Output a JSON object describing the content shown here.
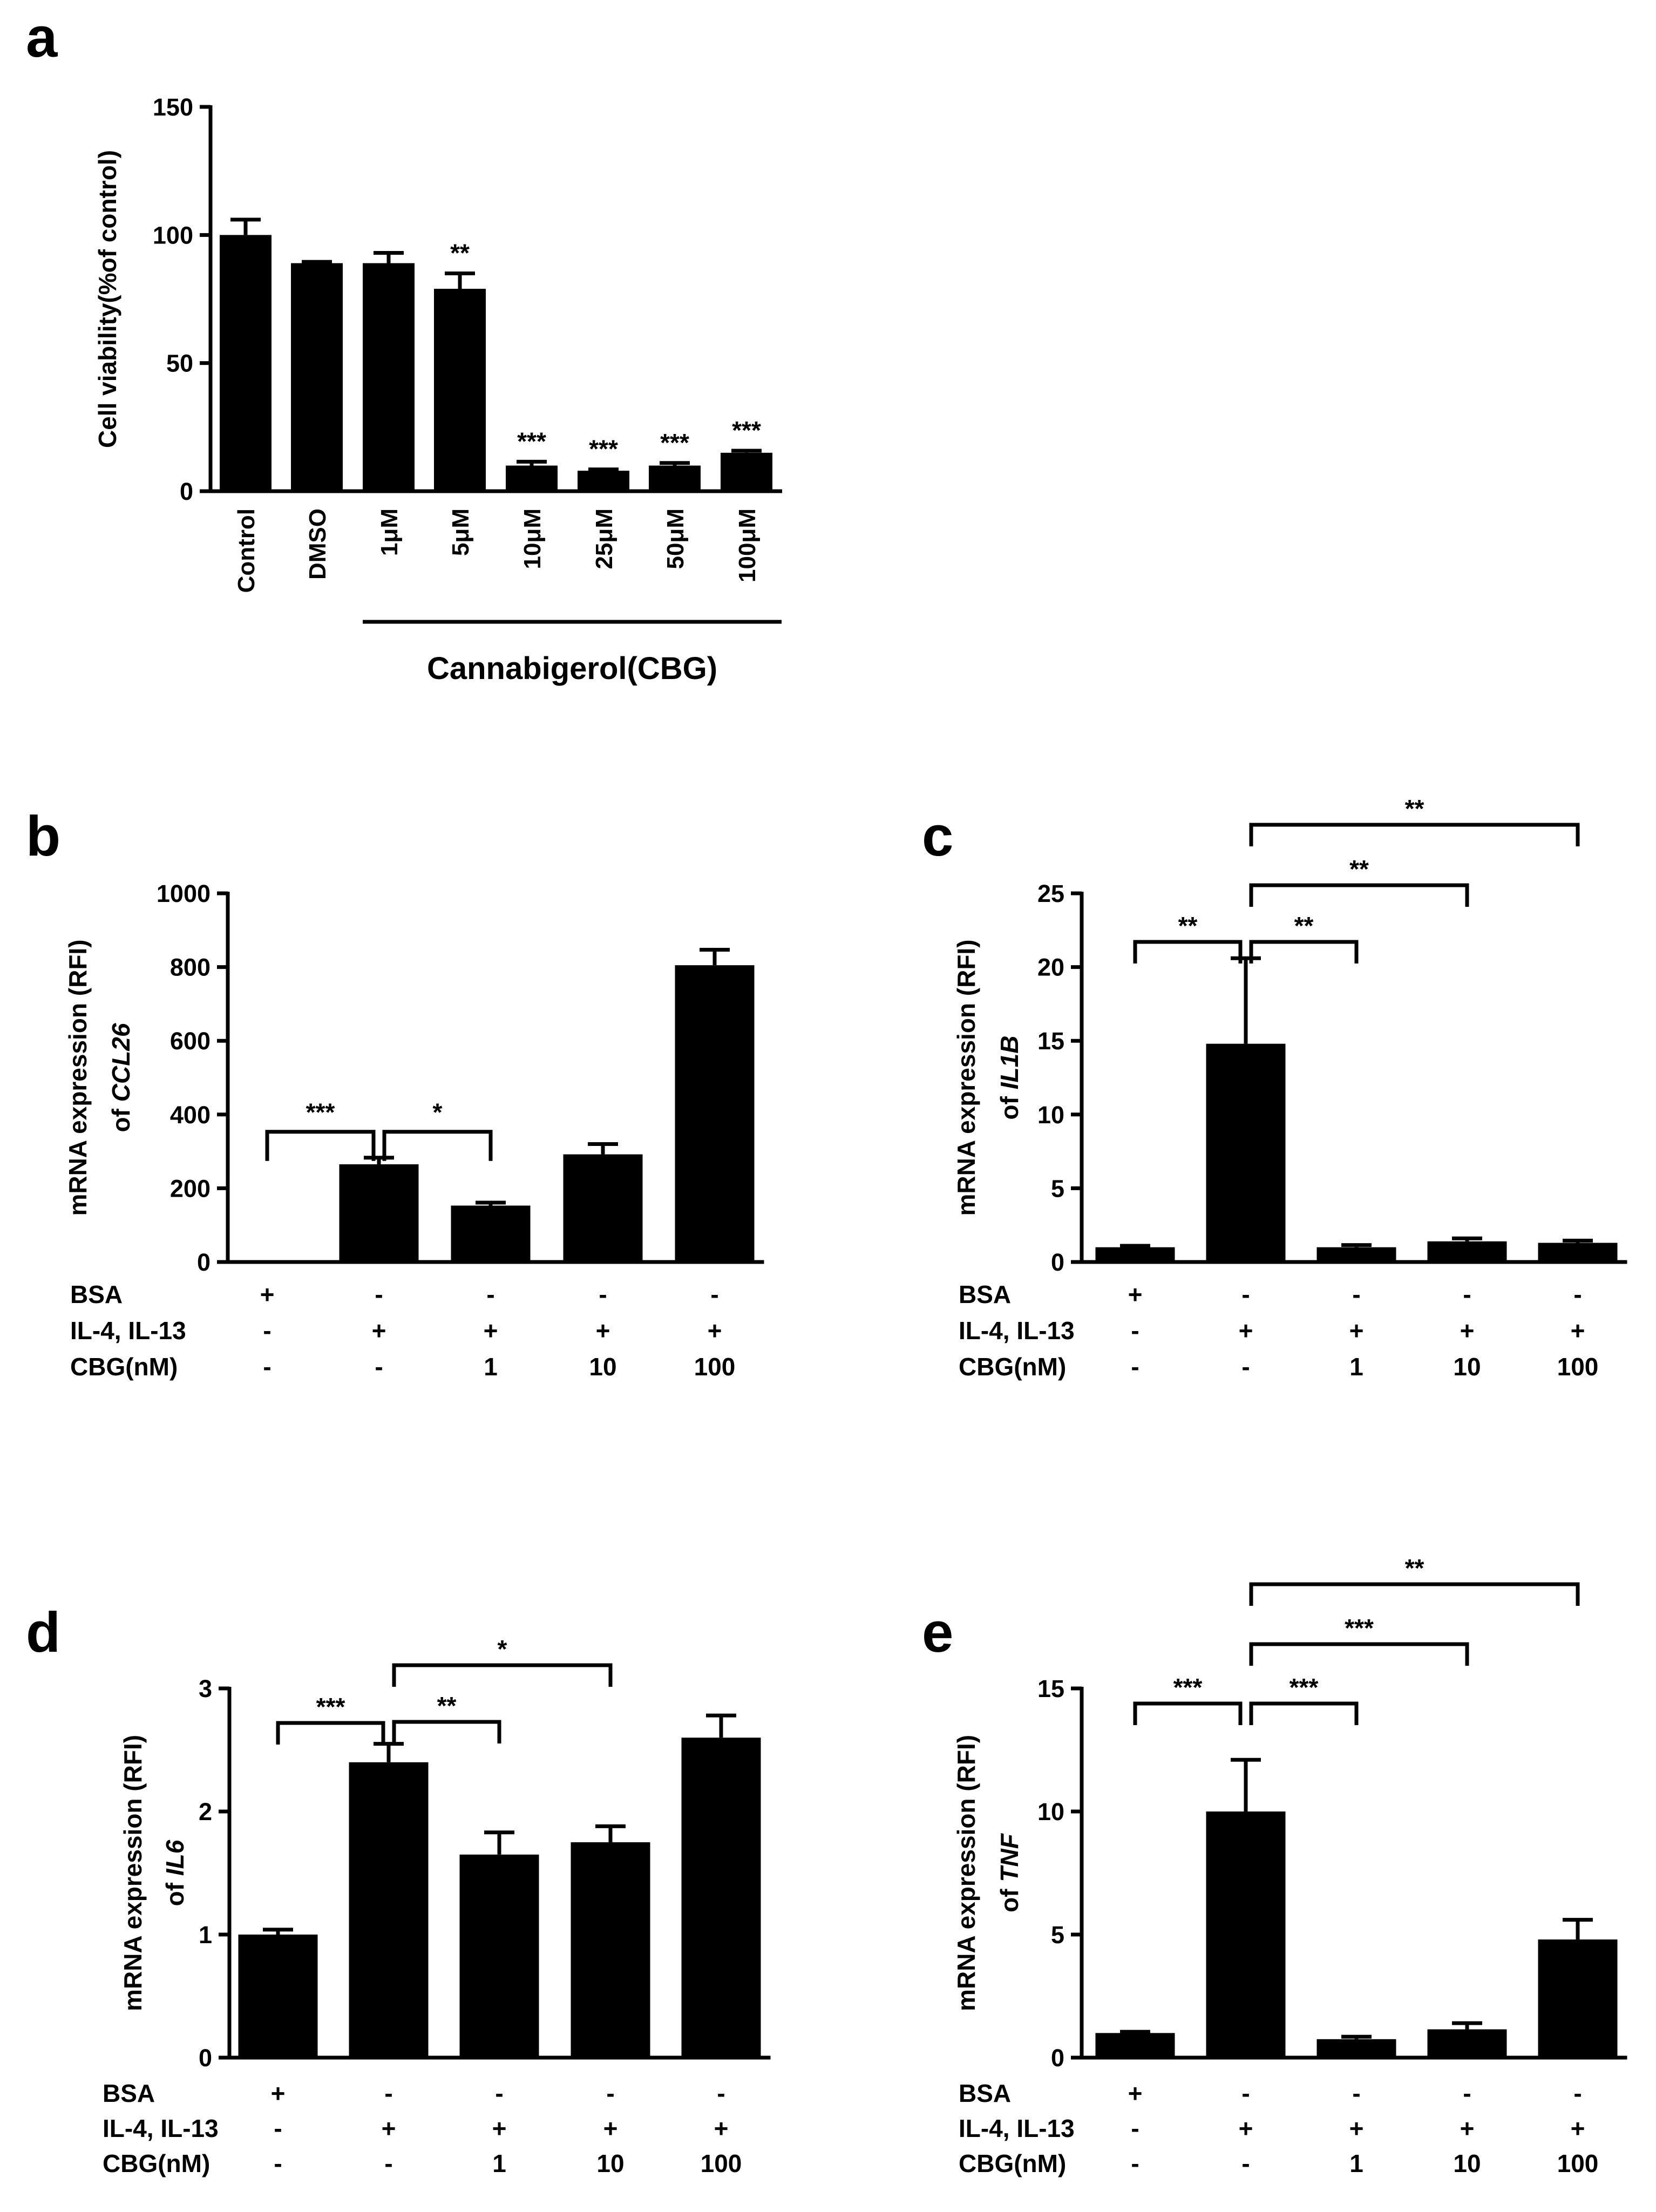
{
  "chart_data": [
    {
      "panel": "a",
      "type": "bar",
      "ylabel": "Cell viability(%of control)",
      "ylim": [
        0,
        150
      ],
      "yticks": [
        0,
        50,
        100,
        150
      ],
      "categories": [
        "Control",
        "DMSO",
        "1μM",
        "5μM",
        "10μM",
        "25μM",
        "50μM",
        "100μM"
      ],
      "values": [
        100,
        89,
        89,
        79,
        10,
        8,
        10,
        15
      ],
      "errors": [
        6,
        0.5,
        4,
        6,
        1.5,
        0.5,
        1,
        0.8
      ],
      "significance": [
        "",
        "",
        "",
        "**",
        "***",
        "***",
        "***",
        "***"
      ],
      "group_label": "Cannabigerol(CBG)"
    },
    {
      "panel": "b",
      "type": "bar",
      "ylabel_line1": "mRNA expression  (RFI)",
      "ylabel_line2_prefix": "of ",
      "ylabel_gene": "CCL26",
      "ylim": [
        0,
        1000
      ],
      "yticks": [
        0,
        200,
        400,
        600,
        800,
        1000
      ],
      "values": [
        1,
        265,
        153,
        292,
        805
      ],
      "errors": [
        0.5,
        18,
        8,
        28,
        42
      ],
      "conditions": {
        "labels": [
          "BSA",
          "IL-4, IL-13",
          "CBG(nM)"
        ],
        "rows": [
          [
            "+",
            "-",
            "-",
            "-",
            "-"
          ],
          [
            "-",
            "+",
            "+",
            "+",
            "+"
          ],
          [
            "-",
            "-",
            "1",
            "10",
            "100"
          ]
        ]
      },
      "comparisons": [
        {
          "from": 0,
          "to": 1,
          "label": "***"
        },
        {
          "from": 1,
          "to": 2,
          "label": "*"
        }
      ]
    },
    {
      "panel": "c",
      "type": "bar",
      "ylabel_line1": "mRNA expression  (RFI)",
      "ylabel_line2_prefix": "of ",
      "ylabel_gene": "IL1B",
      "ylim": [
        0,
        25
      ],
      "yticks": [
        0,
        5,
        10,
        15,
        20,
        25
      ],
      "values": [
        1,
        14.8,
        1,
        1.4,
        1.3
      ],
      "errors": [
        0.1,
        5.8,
        0.15,
        0.2,
        0.15
      ],
      "conditions": {
        "labels": [
          "BSA",
          "IL-4, IL-13",
          "CBG(nM)"
        ],
        "rows": [
          [
            "+",
            "-",
            "-",
            "-",
            "-"
          ],
          [
            "-",
            "+",
            "+",
            "+",
            "+"
          ],
          [
            "-",
            "-",
            "1",
            "10",
            "100"
          ]
        ]
      },
      "comparisons": [
        {
          "from": 0,
          "to": 1,
          "label": "**"
        },
        {
          "from": 1,
          "to": 2,
          "label": "**"
        },
        {
          "from": 1,
          "to": 3,
          "label": "**"
        },
        {
          "from": 1,
          "to": 4,
          "label": "**"
        }
      ]
    },
    {
      "panel": "d",
      "type": "bar",
      "ylabel_line1": "mRNA expression  (RFI)",
      "ylabel_line2_prefix": "of ",
      "ylabel_gene": "IL6",
      "ylim": [
        0,
        3
      ],
      "yticks": [
        0,
        1,
        2,
        3
      ],
      "values": [
        1.0,
        2.4,
        1.65,
        1.75,
        2.6
      ],
      "errors": [
        0.04,
        0.15,
        0.18,
        0.13,
        0.18
      ],
      "conditions": {
        "labels": [
          "BSA",
          "IL-4, IL-13",
          "CBG(nM)"
        ],
        "rows": [
          [
            "+",
            "-",
            "-",
            "-",
            "-"
          ],
          [
            "-",
            "+",
            "+",
            "+",
            "+"
          ],
          [
            "-",
            "-",
            "1",
            "10",
            "100"
          ]
        ]
      },
      "comparisons": [
        {
          "from": 0,
          "to": 1,
          "label": "***"
        },
        {
          "from": 1,
          "to": 2,
          "label": "**"
        },
        {
          "from": 1,
          "to": 3,
          "label": "*"
        }
      ]
    },
    {
      "panel": "e",
      "type": "bar",
      "ylabel_line1": "mRNA expression  (RFI)",
      "ylabel_line2_prefix": "of ",
      "ylabel_gene": "TNF",
      "ylim": [
        0,
        15
      ],
      "yticks": [
        0,
        5,
        10,
        15
      ],
      "values": [
        1.0,
        10.0,
        0.75,
        1.15,
        4.8
      ],
      "errors": [
        0.05,
        2.1,
        0.1,
        0.25,
        0.8
      ],
      "conditions": {
        "labels": [
          "BSA",
          "IL-4, IL-13",
          "CBG(nM)"
        ],
        "rows": [
          [
            "+",
            "-",
            "-",
            "-",
            "-"
          ],
          [
            "-",
            "+",
            "+",
            "+",
            "+"
          ],
          [
            "-",
            "-",
            "1",
            "10",
            "100"
          ]
        ]
      },
      "comparisons": [
        {
          "from": 0,
          "to": 1,
          "label": "***"
        },
        {
          "from": 1,
          "to": 2,
          "label": "***"
        },
        {
          "from": 1,
          "to": 3,
          "label": "***"
        },
        {
          "from": 1,
          "to": 4,
          "label": "**"
        }
      ]
    }
  ]
}
